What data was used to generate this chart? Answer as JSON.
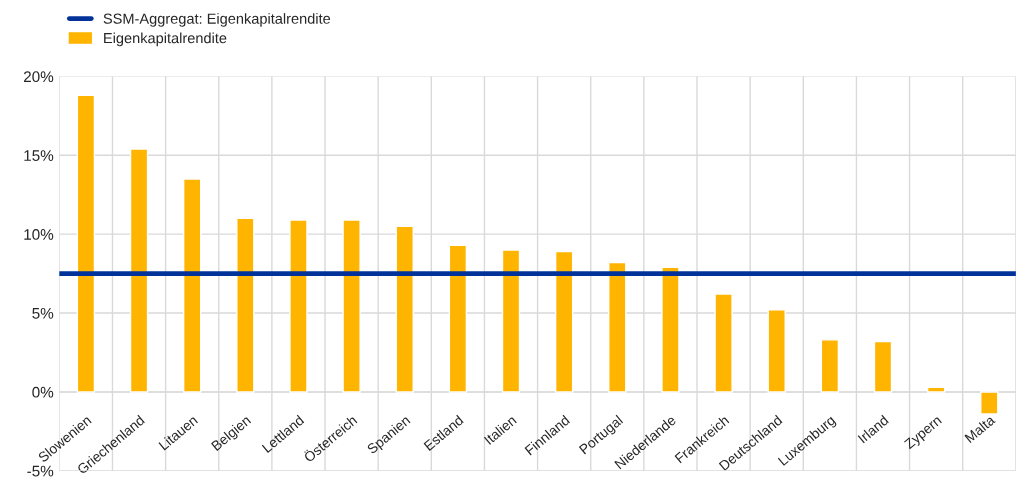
{
  "chart_data": {
    "type": "bar",
    "categories": [
      "Slowenien",
      "Griechenland",
      "Litauen",
      "Belgien",
      "Lettland",
      "Österreich",
      "Spanien",
      "Estland",
      "Italien",
      "Finnland",
      "Portugal",
      "Niederlande",
      "Frankreich",
      "Deutschland",
      "Luxemburg",
      "Irland",
      "Zypern",
      "Malta"
    ],
    "series": [
      {
        "name": "Eigenkapitalrendite",
        "color": "#ffb400",
        "values": [
          18.8,
          15.4,
          13.5,
          11.0,
          10.9,
          10.9,
          10.5,
          9.3,
          9.0,
          8.9,
          8.2,
          7.9,
          6.2,
          5.2,
          3.3,
          3.2,
          0.3,
          -1.4
        ]
      }
    ],
    "ref_lines": [
      {
        "axis": "y",
        "value": 7.5,
        "label": "SSM-Aggregat: Eigenkapitalrendite",
        "color": "#003299"
      }
    ],
    "ylim": [
      -5,
      20
    ],
    "yticks": [
      {
        "value": -5,
        "label": "-5%"
      },
      {
        "value": 0,
        "label": "0%"
      },
      {
        "value": 5,
        "label": "5%"
      },
      {
        "value": 10,
        "label": "10%"
      },
      {
        "value": 15,
        "label": "15%"
      },
      {
        "value": 20,
        "label": "20%"
      }
    ],
    "grid": true,
    "legend": "top left"
  }
}
